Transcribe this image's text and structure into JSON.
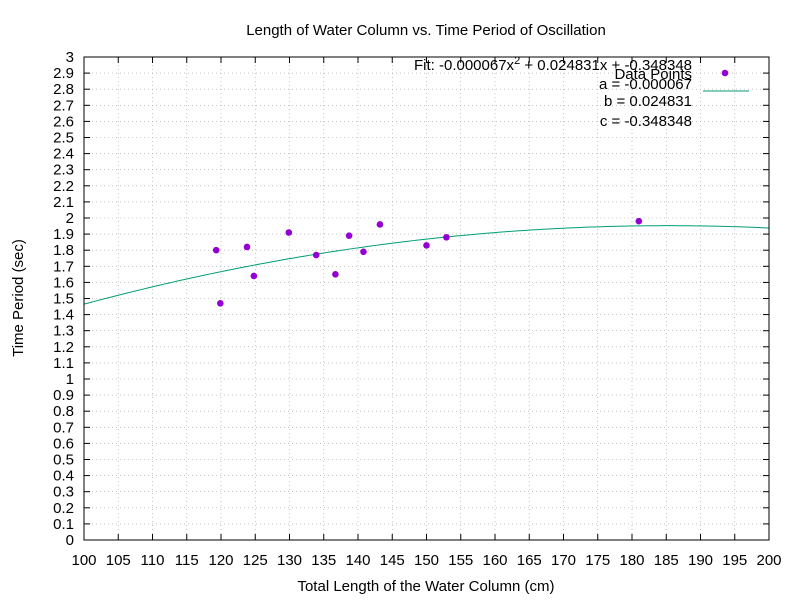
{
  "colors": {
    "points": "#9400d3",
    "fit_line": "#009e73",
    "grid": "#a0a0a0",
    "frame": "#000000",
    "background": "#ffffff"
  },
  "chart_data": {
    "type": "scatter",
    "title": "Length of Water Column vs. Time Period of Oscillation",
    "xlabel": "Total Length of the Water Column (cm)",
    "ylabel": "Time Period (sec)",
    "xlim": [
      100,
      200
    ],
    "ylim": [
      0,
      3
    ],
    "x_ticks": [
      "100",
      "105",
      "110",
      "115",
      "120",
      "125",
      "130",
      "135",
      "140",
      "145",
      "150",
      "155",
      "160",
      "165",
      "170",
      "175",
      "180",
      "185",
      "190",
      "195",
      "200"
    ],
    "y_ticks": [
      "0",
      "0.1",
      "0.2",
      "0.3",
      "0.4",
      "0.5",
      "0.6",
      "0.7",
      "0.8",
      "0.9",
      "1",
      "1.1",
      "1.2",
      "1.3",
      "1.4",
      "1.5",
      "1.6",
      "1.7",
      "1.8",
      "1.9",
      "2",
      "2.1",
      "2.2",
      "2.3",
      "2.4",
      "2.5",
      "2.6",
      "2.7",
      "2.8",
      "2.9",
      "3"
    ],
    "grid": true,
    "legend_position": "top-right",
    "series": [
      {
        "name": "Data Points",
        "type": "scatter",
        "x": [
          119.3,
          119.9,
          123.8,
          124.8,
          129.9,
          133.9,
          136.7,
          138.7,
          140.8,
          143.2,
          150.0,
          152.9,
          181.0
        ],
        "y": [
          1.8,
          1.47,
          1.82,
          1.64,
          1.91,
          1.77,
          1.65,
          1.89,
          1.79,
          1.96,
          1.83,
          1.88,
          1.98
        ]
      },
      {
        "name": "Fit: -0.000067x² + 0.024831x + -0.348348",
        "name_prefix": "Fit: -0.000067x",
        "name_exponent": "2",
        "name_suffix": " + 0.024831x + -0.348348",
        "type": "line",
        "function": "quadratic",
        "coefficients": {
          "a": -6.7e-05,
          "b": 0.024831,
          "c": -0.348348
        }
      }
    ],
    "annotations": [
      "a = -0.000067",
      "b = 0.024831",
      "c = -0.348348"
    ]
  }
}
